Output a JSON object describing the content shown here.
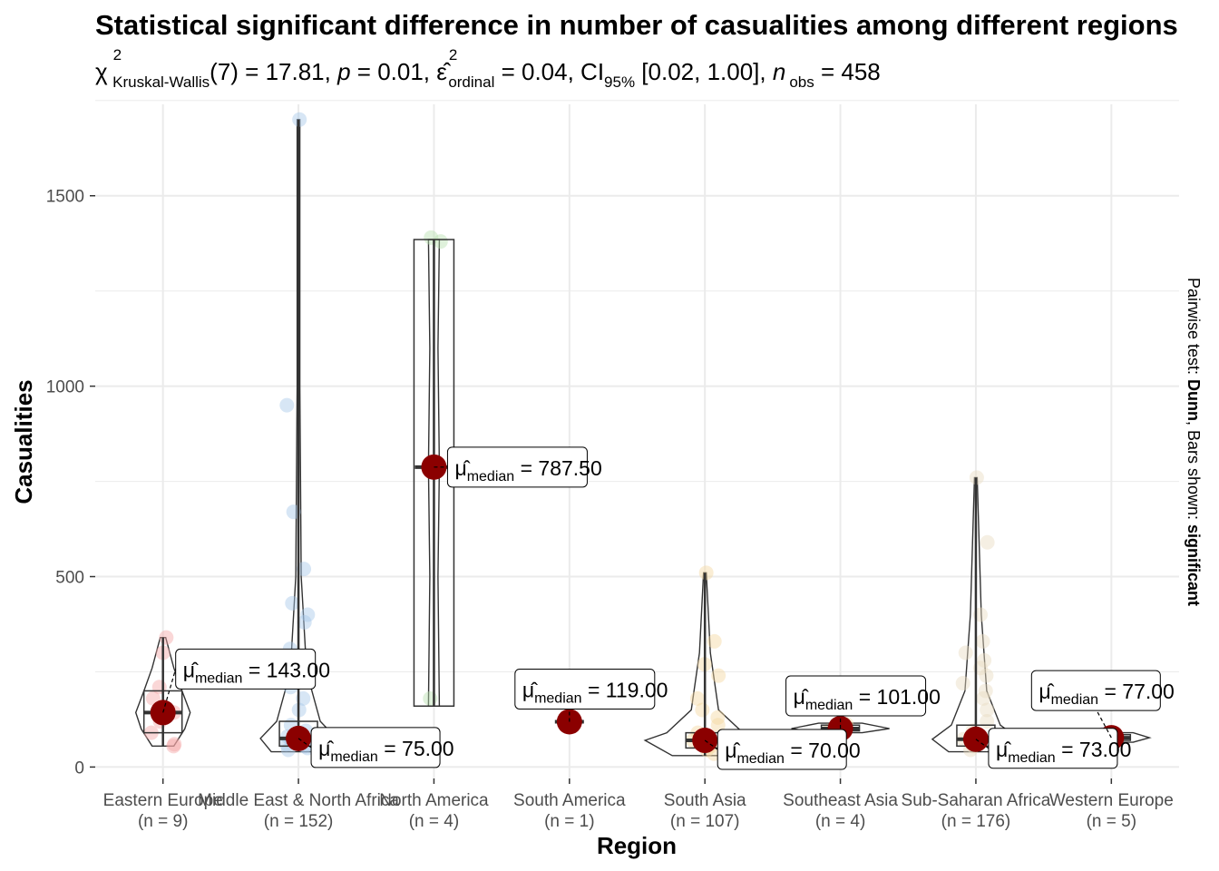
{
  "chart_data": {
    "type": "box-violin",
    "title": "Statistical significant difference in number of casualities among different regions",
    "subtitle": {
      "stat_symbol": "χ",
      "stat_sup": "2",
      "stat_sub": "Kruskal-Wallis",
      "stat_value": "(7) = 17.81, ",
      "p_symbol": "p",
      "p_value": " = 0.01, ",
      "eff_symbol": "ε̂",
      "eff_sup": "2",
      "eff_sub": "ordinal",
      "eff_value": " = 0.04, CI",
      "ci_sub": "95%",
      "ci_value": " [0.02, 1.00], ",
      "n_symbol": "n",
      "n_sub": "obs",
      "n_value": " = 458"
    },
    "xlabel": "Region",
    "ylabel": "Casualities",
    "side_caption": {
      "prefix": "Pairwise test: ",
      "test": "Dunn",
      "middle": ", Bars shown: ",
      "bars": "significant"
    },
    "ylim": [
      -30,
      1740
    ],
    "yticks": [
      0,
      500,
      1000,
      1500
    ],
    "grid": true,
    "label_prefix": "μ̂",
    "label_sub": "median",
    "colors": {
      "median_point": "#8B0000",
      "box_stroke": "#333333",
      "grid": "#ebebeb",
      "tick_text": "#4d4d4d"
    },
    "categories": [
      {
        "name": "Eastern Europe",
        "n": "(n = 9)",
        "color": "#F4A6A6",
        "median": 143,
        "label": "= 143.00",
        "box": [
          90,
          143,
          200
        ],
        "whisker": [
          55,
          340
        ],
        "violin": [
          [
            55,
            4
          ],
          [
            100,
            8
          ],
          [
            143,
            10
          ],
          [
            200,
            7
          ],
          [
            260,
            4
          ],
          [
            340,
            1
          ]
        ],
        "points": [
          55,
          60,
          90,
          120,
          143,
          180,
          210,
          300,
          340
        ],
        "label_pos": "right-up"
      },
      {
        "name": "Middle East & North Africa",
        "n": "(n = 152)",
        "color": "#A6C8E8",
        "median": 75,
        "label": "= 75.00",
        "box": [
          55,
          75,
          120
        ],
        "whisker": [
          40,
          1700
        ],
        "violin": [
          [
            40,
            10
          ],
          [
            75,
            14
          ],
          [
            120,
            8
          ],
          [
            250,
            3
          ],
          [
            500,
            1
          ],
          [
            1000,
            0.5
          ],
          [
            1700,
            0.5
          ]
        ],
        "points": [
          45,
          50,
          55,
          60,
          70,
          80,
          95,
          110,
          150,
          180,
          210,
          250,
          270,
          290,
          310,
          380,
          400,
          430,
          520,
          670,
          950,
          1700
        ],
        "label_pos": "right-down"
      },
      {
        "name": "North America",
        "n": "(n = 4)",
        "color": "#B8E0B0",
        "median": 787.5,
        "label": "= 787.50",
        "box": [
          160,
          787.5,
          1385
        ],
        "whisker": [
          160,
          1385
        ],
        "violin": [
          [
            160,
            2
          ],
          [
            500,
            1.5
          ],
          [
            787.5,
            2
          ],
          [
            1100,
            1.5
          ],
          [
            1385,
            2
          ]
        ],
        "points": [
          180,
          1380,
          1390
        ],
        "label_pos": "right-flat"
      },
      {
        "name": "South America",
        "n": "(n = 1)",
        "color": "#F5D6A0",
        "median": 119,
        "label": "= 119.00",
        "box": [
          119,
          119,
          119
        ],
        "whisker": [
          119,
          119
        ],
        "violin": [],
        "points": [
          119
        ],
        "label_pos": "up"
      },
      {
        "name": "South Asia",
        "n": "(n = 107)",
        "color": "#F5D6A0",
        "median": 70,
        "label": "= 70.00",
        "box": [
          50,
          70,
          90
        ],
        "whisker": [
          30,
          510
        ],
        "violin": [
          [
            30,
            12
          ],
          [
            70,
            22
          ],
          [
            90,
            14
          ],
          [
            150,
            5
          ],
          [
            300,
            2
          ],
          [
            510,
            0.5
          ]
        ],
        "points": [
          35,
          45,
          55,
          70,
          90,
          110,
          130,
          150,
          180,
          240,
          270,
          330,
          510
        ],
        "label_pos": "right-down"
      },
      {
        "name": "Southeast Asia",
        "n": "(n = 4)",
        "color": "#F5D6A0",
        "median": 101,
        "label": "= 101.00",
        "box": [
          95,
          101,
          110
        ],
        "whisker": [
          90,
          115
        ],
        "violin": [
          [
            90,
            8
          ],
          [
            101,
            18
          ],
          [
            115,
            8
          ]
        ],
        "points": [
          95,
          101,
          108,
          112
        ],
        "label_pos": "up"
      },
      {
        "name": "Sub-Saharan Africa",
        "n": "(n = 176)",
        "color": "#E8DCC0",
        "median": 73,
        "label": "= 73.00",
        "box": [
          55,
          73,
          110
        ],
        "whisker": [
          40,
          760
        ],
        "violin": [
          [
            40,
            10
          ],
          [
            73,
            16
          ],
          [
            110,
            9
          ],
          [
            200,
            4
          ],
          [
            400,
            2
          ],
          [
            760,
            0.5
          ]
        ],
        "points": [
          45,
          55,
          73,
          95,
          120,
          150,
          180,
          200,
          220,
          240,
          260,
          280,
          300,
          330,
          400,
          590,
          760
        ],
        "label_pos": "right-down"
      },
      {
        "name": "Western Europe",
        "n": "(n = 5)",
        "color": "#C8C0D8",
        "median": 77,
        "label": "= 77.00",
        "box": [
          70,
          77,
          85
        ],
        "whisker": [
          65,
          90
        ],
        "violin": [
          [
            65,
            8
          ],
          [
            77,
            14
          ],
          [
            90,
            8
          ]
        ],
        "points": [
          70,
          75,
          77,
          80,
          88
        ],
        "label_pos": "up-left"
      }
    ]
  }
}
